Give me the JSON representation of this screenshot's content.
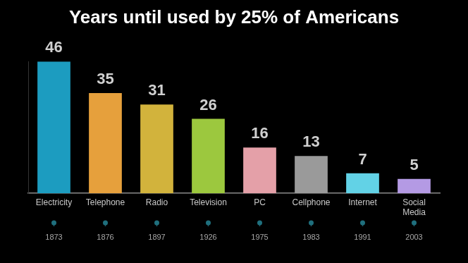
{
  "chart_data": {
    "type": "bar",
    "title": "Years until used by 25% of Americans",
    "categories": [
      "Electricity",
      "Telephone",
      "Radio",
      "Television",
      "PC",
      "Cellphone",
      "Internet",
      "Social Media"
    ],
    "values": [
      46,
      35,
      31,
      26,
      16,
      13,
      7,
      5
    ],
    "years": [
      1873,
      1876,
      1897,
      1926,
      1975,
      1983,
      1991,
      2003
    ],
    "colors": [
      "#1c9cc0",
      "#e6a03c",
      "#d2b33c",
      "#9cc83e",
      "#e4a0a8",
      "#9a9a9a",
      "#62d2e6",
      "#b49ae4"
    ],
    "ylim": [
      0,
      46
    ],
    "yticks": [],
    "grid": false,
    "data_labels": true,
    "tick_labels": "x"
  }
}
